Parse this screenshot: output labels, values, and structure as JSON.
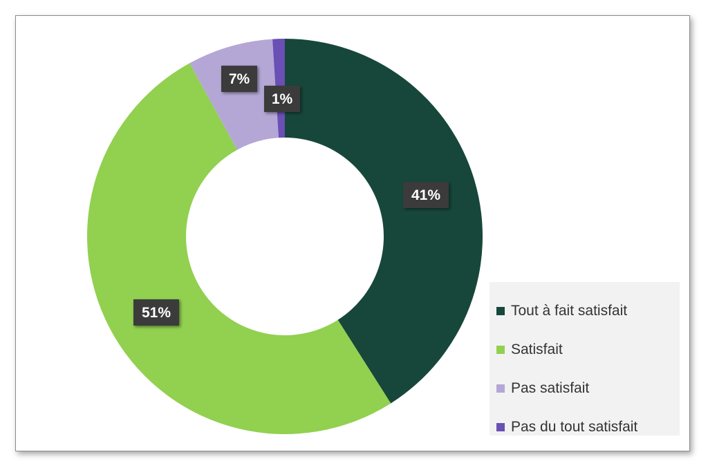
{
  "chart_data": {
    "type": "pie",
    "variant": "donut",
    "title": "",
    "categories": [
      "Tout à fait satisfait",
      "Satisfait",
      "Pas satisfait",
      "Pas du tout satisfait"
    ],
    "values": [
      41,
      51,
      7,
      1
    ],
    "value_labels": [
      "41%",
      "51%",
      "7%",
      "1%"
    ],
    "colors": [
      "#17473a",
      "#92d050",
      "#b4a7d6",
      "#6a4fb5"
    ],
    "start": "top, clockwise",
    "legend_position": "bottom-right",
    "data_label_background": "#3a3a3a",
    "data_label_color": "#ffffff"
  },
  "legend": {
    "items": [
      {
        "label": "Tout à fait satisfait",
        "color": "#17473a"
      },
      {
        "label": "Satisfait",
        "color": "#92d050"
      },
      {
        "label": "Pas satisfait",
        "color": "#b4a7d6"
      },
      {
        "label": "Pas du tout satisfait",
        "color": "#6a4fb5"
      }
    ]
  }
}
